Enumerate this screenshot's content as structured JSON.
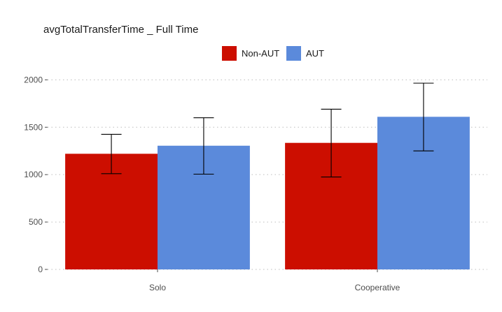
{
  "chart_data": {
    "type": "bar",
    "title": "avgTotalTransferTime _ Full Time",
    "xlabel": "",
    "ylabel": "",
    "categories": [
      "Solo",
      "Cooperative"
    ],
    "series": [
      {
        "name": "Non-AUT",
        "color": "#cc0e00",
        "values": [
          1220,
          1335
        ],
        "error_low": [
          1010,
          975
        ],
        "error_high": [
          1425,
          1690
        ]
      },
      {
        "name": "AUT",
        "color": "#5b8adb",
        "values": [
          1305,
          1610
        ],
        "error_low": [
          1005,
          1250
        ],
        "error_high": [
          1600,
          1965
        ]
      }
    ],
    "ylim": [
      0,
      2150
    ],
    "yticks": [
      0,
      500,
      1000,
      1500,
      2000
    ],
    "grid": true,
    "legend_position": "top"
  }
}
